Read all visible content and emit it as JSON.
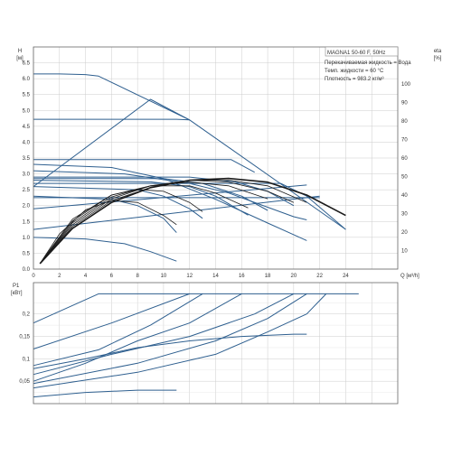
{
  "chart_data": [
    {
      "type": "line",
      "title": "",
      "x_axis": {
        "label": "Q [м³/h]",
        "range": [
          0,
          28
        ],
        "ticks": [
          "0",
          "2",
          "4",
          "6",
          "8",
          "10",
          "12",
          "14",
          "16",
          "18",
          "20",
          "22",
          "24"
        ]
      },
      "y_axis": {
        "label": [
          "H",
          "[м]"
        ],
        "range": [
          0,
          7
        ],
        "ticks": [
          "0.0",
          "0.5",
          "1.0",
          "1.5",
          "2.0",
          "2.5",
          "3.0",
          "3.5",
          "4.0",
          "4.5",
          "5.0",
          "5.5",
          "6.0",
          "6.5"
        ]
      },
      "y2_axis": {
        "label": [
          "eta",
          "[%]"
        ],
        "range": [
          0,
          120
        ],
        "ticks": [
          "10",
          "20",
          "30",
          "40",
          "50",
          "60",
          "70",
          "80",
          "90",
          "100"
        ]
      },
      "grid": true,
      "info_box": {
        "title": "MAGNA1 50-60 F, 50Hz",
        "lines": [
          "Перекачиваемая жидкость = Вода",
          "Темп. жидкости = 60 °C",
          "Плотность = 983.2 кг/м³"
        ]
      },
      "colors": {
        "curve": "#2e5f8f",
        "efficiency": "#1a1a1a",
        "grid": "#cccccc"
      },
      "series": [
        {
          "kind": "pressure",
          "values": [
            [
              0,
              6.15
            ],
            [
              2,
              6.15
            ],
            [
              4,
              6.13
            ],
            [
              5,
              6.08
            ],
            [
              12,
              4.7
            ],
            [
              24,
              1.25
            ]
          ]
        },
        {
          "kind": "pressure",
          "values": [
            [
              0,
              4.72
            ],
            [
              11,
              4.72
            ],
            [
              12,
              4.7
            ]
          ]
        },
        {
          "kind": "pressure",
          "values": [
            [
              0,
              3.45
            ],
            [
              15.2,
              3.45
            ],
            [
              17,
              3.05
            ]
          ]
        },
        {
          "kind": "pressure",
          "values": [
            [
              0,
              2.7
            ],
            [
              19,
              2.7
            ],
            [
              21,
              2.3
            ],
            [
              24,
              1.25
            ]
          ]
        },
        {
          "kind": "pressure",
          "values": [
            [
              0,
              2.25
            ],
            [
              22,
              2.25
            ]
          ]
        },
        {
          "kind": "pressure",
          "values": [
            [
              0,
              1.9
            ],
            [
              21,
              2.65
            ]
          ]
        },
        {
          "kind": "pressure",
          "values": [
            [
              0,
              1.25
            ],
            [
              22,
              2.3
            ]
          ]
        },
        {
          "kind": "pressure",
          "values": [
            [
              0,
              2.6
            ],
            [
              9,
              5.35
            ],
            [
              12,
              4.7
            ]
          ]
        },
        {
          "kind": "pressure",
          "values": [
            [
              0,
              3.3
            ],
            [
              6,
              3.2
            ],
            [
              10,
              2.85
            ],
            [
              14,
              2.2
            ],
            [
              18,
              1.45
            ],
            [
              21,
              0.9
            ]
          ]
        },
        {
          "kind": "pressure",
          "values": [
            [
              0,
              3.1
            ],
            [
              7,
              3.0
            ],
            [
              12,
              2.7
            ],
            [
              15,
              2.4
            ],
            [
              18,
              1.95
            ],
            [
              20,
              1.65
            ],
            [
              21,
              1.55
            ]
          ]
        },
        {
          "kind": "pressure",
          "values": [
            [
              0,
              1.0
            ],
            [
              4,
              0.95
            ],
            [
              7,
              0.8
            ],
            [
              9,
              0.55
            ],
            [
              11,
              0.25
            ]
          ]
        },
        {
          "kind": "pressure",
          "values": [
            [
              0,
              2.9
            ],
            [
              12,
              2.9
            ],
            [
              15.5,
              2.75
            ],
            [
              18,
              2.45
            ],
            [
              20,
              2.0
            ]
          ]
        },
        {
          "kind": "pressure",
          "values": [
            [
              0,
              2.85
            ],
            [
              10,
              2.85
            ],
            [
              13,
              2.7
            ],
            [
              16,
              2.3
            ],
            [
              18,
              1.85
            ]
          ]
        },
        {
          "kind": "pressure",
          "values": [
            [
              0,
              2.8
            ],
            [
              9,
              2.75
            ],
            [
              12,
              2.6
            ],
            [
              14,
              2.3
            ],
            [
              16.5,
              1.7
            ]
          ]
        },
        {
          "kind": "pressure",
          "values": [
            [
              0,
              2.6
            ],
            [
              8,
              2.5
            ],
            [
              10,
              2.3
            ],
            [
              12,
              1.9
            ],
            [
              13,
              1.6
            ]
          ]
        },
        {
          "kind": "pressure",
          "values": [
            [
              0,
              2.3
            ],
            [
              6,
              2.2
            ],
            [
              8,
              2.0
            ],
            [
              10,
              1.6
            ],
            [
              11,
              1.15
            ]
          ]
        },
        {
          "kind": "efficiency",
          "values": [
            [
              0.5,
              3
            ],
            [
              3,
              22
            ],
            [
              6,
              36
            ],
            [
              9,
              44
            ],
            [
              12,
              48
            ],
            [
              15,
              49
            ],
            [
              18,
              47
            ],
            [
              21,
              40
            ],
            [
              24,
              29
            ]
          ]
        },
        {
          "kind": "efficiency",
          "values": [
            [
              0.5,
              3
            ],
            [
              3,
              23
            ],
            [
              6,
              37
            ],
            [
              9,
              44
            ],
            [
              12,
              48
            ],
            [
              15,
              48
            ],
            [
              18,
              45
            ],
            [
              21,
              36
            ]
          ]
        },
        {
          "kind": "efficiency",
          "values": [
            [
              0.5,
              3
            ],
            [
              3,
              24
            ],
            [
              6,
              38
            ],
            [
              9,
              45
            ],
            [
              12,
              48
            ],
            [
              15,
              47
            ],
            [
              18,
              42
            ],
            [
              20,
              36
            ]
          ]
        },
        {
          "kind": "efficiency",
          "values": [
            [
              0.5,
              3
            ],
            [
              3,
              25
            ],
            [
              6,
              39
            ],
            [
              9,
              45
            ],
            [
              12,
              47
            ],
            [
              15,
              45
            ],
            [
              18,
              38
            ]
          ]
        },
        {
          "kind": "efficiency",
          "values": [
            [
              0.5,
              3
            ],
            [
              3,
              26
            ],
            [
              6,
              40
            ],
            [
              9,
              45
            ],
            [
              12,
              45
            ],
            [
              14,
              41
            ],
            [
              16.5,
              33
            ]
          ]
        },
        {
          "kind": "efficiency",
          "values": [
            [
              0.5,
              3
            ],
            [
              3,
              27
            ],
            [
              6,
              40
            ],
            [
              8,
              43
            ],
            [
              10,
              42
            ],
            [
              12,
              36
            ],
            [
              13,
              31
            ]
          ]
        },
        {
          "kind": "efficiency",
          "values": [
            [
              0.5,
              3
            ],
            [
              2,
              19
            ],
            [
              4,
              32
            ],
            [
              6,
              37
            ],
            [
              8,
              36
            ],
            [
              10,
              29
            ],
            [
              11,
              24
            ]
          ]
        }
      ]
    },
    {
      "type": "line",
      "title": "",
      "x_axis": {
        "range": [
          0,
          28
        ]
      },
      "y_axis": {
        "label": [
          "P1",
          "[кВт]"
        ],
        "range": [
          0,
          0.27
        ],
        "ticks": [
          "0,05",
          "0,1",
          "0,15",
          "0,2"
        ]
      },
      "grid": true,
      "colors": {
        "curve": "#2e5f8f",
        "grid": "#cccccc"
      },
      "series": [
        {
          "values": [
            [
              0,
              0.18
            ],
            [
              5,
              0.245
            ],
            [
              25,
              0.245
            ]
          ]
        },
        {
          "values": [
            [
              0,
              0.122
            ],
            [
              6,
              0.18
            ],
            [
              12,
              0.245
            ]
          ]
        },
        {
          "values": [
            [
              0,
              0.085
            ],
            [
              5,
              0.12
            ],
            [
              9,
              0.175
            ],
            [
              13,
              0.245
            ]
          ]
        },
        {
          "values": [
            [
              0,
              0.05
            ],
            [
              4,
              0.09
            ],
            [
              8,
              0.14
            ],
            [
              12,
              0.18
            ],
            [
              16,
              0.245
            ]
          ]
        },
        {
          "values": [
            [
              0,
              0.078
            ],
            [
              4,
              0.1
            ],
            [
              8,
              0.125
            ],
            [
              12,
              0.14
            ],
            [
              16,
              0.15
            ],
            [
              20,
              0.155
            ],
            [
              21,
              0.155
            ]
          ]
        },
        {
          "values": [
            [
              0,
              0.065
            ],
            [
              6,
              0.11
            ],
            [
              12,
              0.15
            ],
            [
              17,
              0.2
            ],
            [
              20,
              0.245
            ]
          ]
        },
        {
          "values": [
            [
              0,
              0.045
            ],
            [
              8,
              0.09
            ],
            [
              14,
              0.14
            ],
            [
              18,
              0.19
            ],
            [
              21,
              0.245
            ]
          ]
        },
        {
          "values": [
            [
              0,
              0.035
            ],
            [
              8,
              0.07
            ],
            [
              14,
              0.11
            ],
            [
              18,
              0.16
            ],
            [
              21,
              0.2
            ],
            [
              22.5,
              0.245
            ]
          ]
        },
        {
          "values": [
            [
              0,
              0.015
            ],
            [
              4,
              0.025
            ],
            [
              8,
              0.03
            ],
            [
              11,
              0.03
            ]
          ]
        }
      ]
    }
  ]
}
